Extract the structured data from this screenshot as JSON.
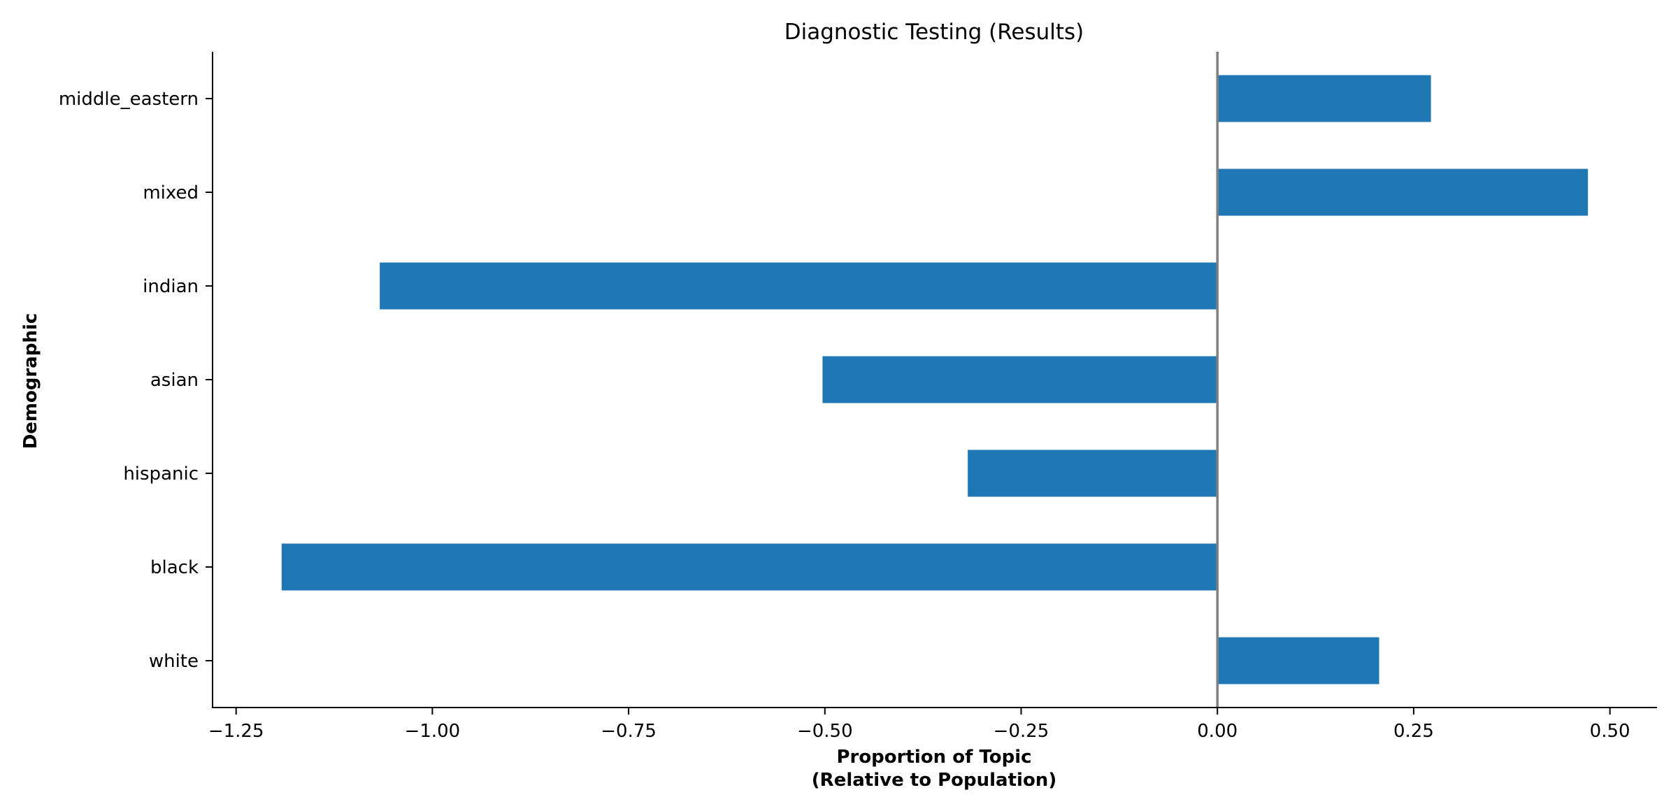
{
  "chart_data": {
    "type": "bar",
    "orientation": "horizontal",
    "title": "Diagnostic Testing (Results)",
    "xlabel_lines": [
      "Proportion of Topic",
      "(Relative to Population)"
    ],
    "ylabel": "Demographic",
    "categories": [
      "middle_eastern",
      "mixed",
      "indian",
      "asian",
      "hispanic",
      "black",
      "white"
    ],
    "values": [
      0.272,
      0.472,
      -1.067,
      -0.503,
      -0.318,
      -1.192,
      0.206
    ],
    "xlim": [
      -1.28,
      0.56
    ],
    "xticks": [
      -1.25,
      -1.0,
      -0.75,
      -0.5,
      -0.25,
      0.0,
      0.25,
      0.5
    ],
    "xtick_labels": [
      "−1.25",
      "−1.00",
      "−0.75",
      "−0.50",
      "−0.25",
      "0.00",
      "0.25",
      "0.50"
    ],
    "reference_line": 0,
    "grid": false,
    "colors": {
      "bar": "#1f77b4",
      "reference_line": "#808080",
      "axis": "#000000"
    }
  }
}
